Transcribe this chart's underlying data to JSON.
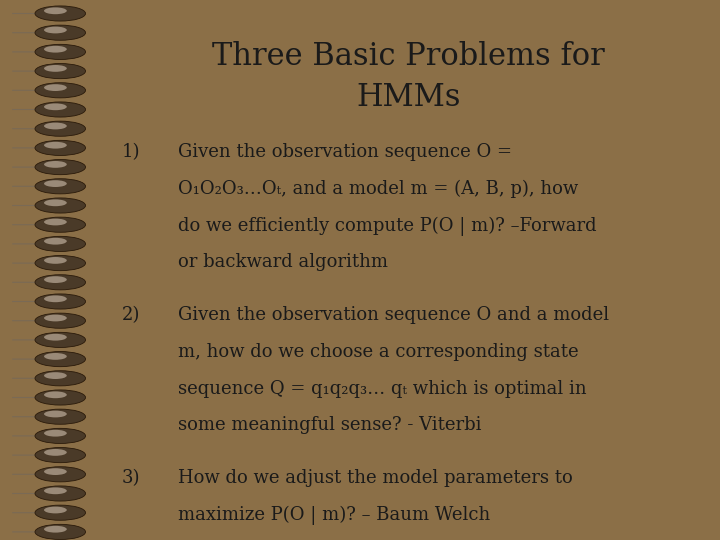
{
  "title_line1": "Three Basic Problems for",
  "title_line2": "HMMs",
  "bg_color": "#e8e0d0",
  "border_color": "#8B6F47",
  "title_color": "#1a1a1a",
  "text_color": "#1a1a1a",
  "divider_color": "#8B6F47",
  "item1_number": "1)",
  "item1_line1": "Given the observation sequence O =",
  "item1_line2": "O₁O₂O₃…Oₜ, and a model m = (A, B, p), how",
  "item1_line3": "do we efficiently compute P(O | m)? –Forward",
  "item1_line4": "or backward algorithm",
  "item2_number": "2)",
  "item2_line1": "Given the observation sequence O and a model",
  "item2_line2": "m, how do we choose a corresponding state",
  "item2_line3": "sequence Q = q₁q₂q₃… qₜ which is optimal in",
  "item2_line4": "some meaningful sense? - Viterbi",
  "item3_number": "3)",
  "item3_line1": "How do we adjust the model parameters to",
  "item3_line2": "maximize P(O | m)? – Baum Welch",
  "title_fontsize": 22,
  "body_fontsize": 13.0,
  "spiral_outer_color": "#4a3a28",
  "spiral_inner_color": "#9a8a78",
  "spiral_wire_color": "#7a6a55"
}
